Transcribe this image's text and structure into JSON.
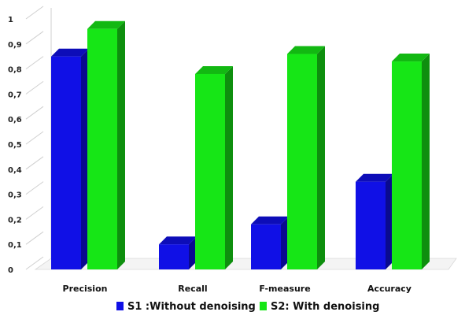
{
  "chart_data": {
    "type": "bar",
    "categories": [
      "Precision",
      "Recall",
      "F-measure",
      "Accuracy"
    ],
    "series": [
      {
        "name": "S1 :Without denoising",
        "values": [
          0.85,
          0.1,
          0.18,
          0.35
        ],
        "color": "#1010e6"
      },
      {
        "name": "S2: With denoising",
        "values": [
          0.96,
          0.78,
          0.86,
          0.83
        ],
        "color": "#16e616"
      }
    ],
    "yticks": [
      "0",
      "0,1",
      "0,2",
      "0,3",
      "0,4",
      "0,5",
      "0,6",
      "0,7",
      "0,8",
      "0,9",
      "1"
    ],
    "ylim": [
      0,
      1
    ],
    "grid": false,
    "legend_position": "bottom"
  }
}
